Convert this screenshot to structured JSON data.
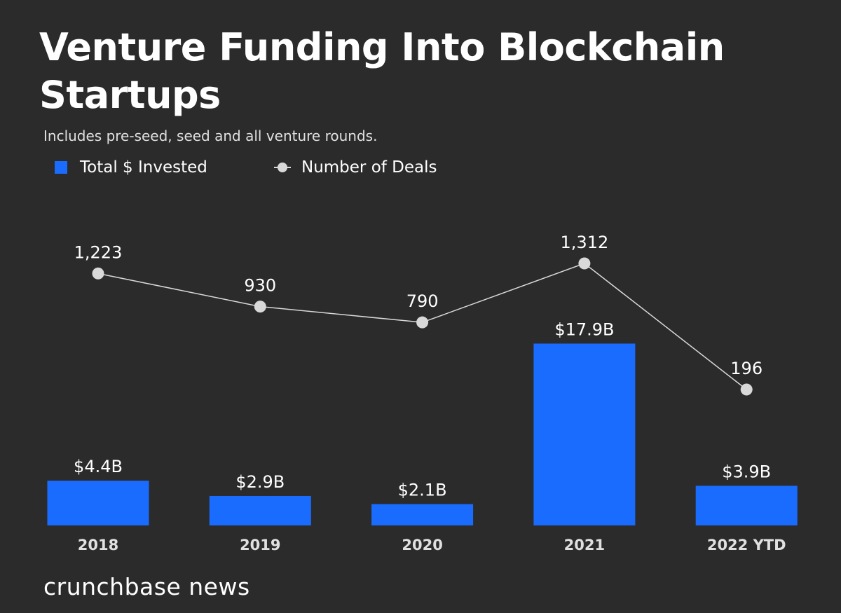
{
  "chart_data": {
    "type": "bar",
    "title": "Venture Funding Into Blockchain Startups",
    "subtitle": "Includes pre-seed, seed and all venture rounds.",
    "categories": [
      "2018",
      "2019",
      "2020",
      "2021",
      "2022 YTD"
    ],
    "series": [
      {
        "name": "Total $ Invested",
        "type": "bar",
        "unit": "$B",
        "values": [
          4.4,
          2.9,
          2.1,
          17.9,
          3.9
        ],
        "labels": [
          "$4.4B",
          "$2.9B",
          "$2.1B",
          "$17.9B",
          "$3.9B"
        ],
        "color": "#1a6cff"
      },
      {
        "name": "Number of Deals",
        "type": "line",
        "values": [
          1223,
          930,
          790,
          1312,
          196
        ],
        "labels": [
          "1,223",
          "930",
          "790",
          "1,312",
          "196"
        ],
        "color": "#d9d9d9"
      }
    ],
    "legend": "top-left",
    "grid": false
  },
  "colors": {
    "background": "#2b2b2b",
    "bar": "#1a6cff",
    "line": "#d9d9d9"
  },
  "logo": "crunchbase news"
}
